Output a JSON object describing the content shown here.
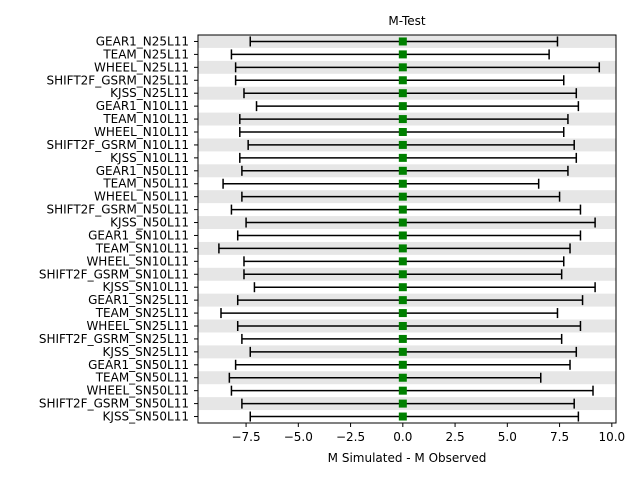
{
  "chart_data": {
    "type": "errorbar",
    "title": "M-Test",
    "xlabel": "M Simulated - M Observed",
    "ylabel": "",
    "xlim": [
      -9.8,
      10.2
    ],
    "xticks": [
      -7.5,
      -5.0,
      -2.5,
      0.0,
      2.5,
      5.0,
      7.5,
      10.0
    ],
    "xtick_labels": [
      "−7.5",
      "−5.0",
      "−2.5",
      "0.0",
      "2.5",
      "5.0",
      "7.5",
      "10.0"
    ],
    "grid": "alternating horizontal bands",
    "band_color": "#e6e6e6",
    "marker_color": "#008000",
    "bar_color": "#000000",
    "categories": [
      "GEAR1_N25L11",
      "TEAM_N25L11",
      "WHEEL_N25L11",
      "SHIFT2F_GSRM_N25L11",
      "KJSS_N25L11",
      "GEAR1_N10L11",
      "TEAM_N10L11",
      "WHEEL_N10L11",
      "SHIFT2F_GSRM_N10L11",
      "KJSS_N10L11",
      "GEAR1_N50L11",
      "TEAM_N50L11",
      "WHEEL_N50L11",
      "SHIFT2F_GSRM_N50L11",
      "KJSS_N50L11",
      "GEAR1_SN10L11",
      "TEAM_SN10L11",
      "WHEEL_SN10L11",
      "SHIFT2F_GSRM_SN10L11",
      "KJSS_SN10L11",
      "GEAR1_SN25L11",
      "TEAM_SN25L11",
      "WHEEL_SN25L11",
      "SHIFT2F_GSRM_SN25L11",
      "KJSS_SN25L11",
      "GEAR1_SN50L11",
      "TEAM_SN50L11",
      "WHEEL_SN50L11",
      "SHIFT2F_GSRM_SN50L11",
      "KJSS_SN50L11"
    ],
    "values": [
      0,
      0,
      0,
      0,
      0,
      0,
      0,
      0,
      0,
      0,
      0,
      0,
      0,
      0,
      0,
      0,
      0,
      0,
      0,
      0,
      0,
      0,
      0,
      0,
      0,
      0,
      0,
      0,
      0,
      0
    ],
    "lower": [
      -7.3,
      -8.2,
      -8.0,
      -8.0,
      -7.6,
      -7.0,
      -7.8,
      -7.8,
      -7.4,
      -7.8,
      -7.7,
      -8.6,
      -7.7,
      -8.2,
      -7.5,
      -7.9,
      -8.8,
      -7.6,
      -7.6,
      -7.1,
      -7.9,
      -8.7,
      -7.9,
      -7.7,
      -7.3,
      -8.0,
      -8.3,
      -8.2,
      -7.7,
      -7.3
    ],
    "upper": [
      7.4,
      7.0,
      9.4,
      7.7,
      8.3,
      8.4,
      7.9,
      7.7,
      8.2,
      8.3,
      7.9,
      6.5,
      7.5,
      8.5,
      9.2,
      8.5,
      8.0,
      7.7,
      7.6,
      9.2,
      8.6,
      7.4,
      8.5,
      7.6,
      8.3,
      8.0,
      6.6,
      9.1,
      8.2,
      8.4
    ]
  }
}
